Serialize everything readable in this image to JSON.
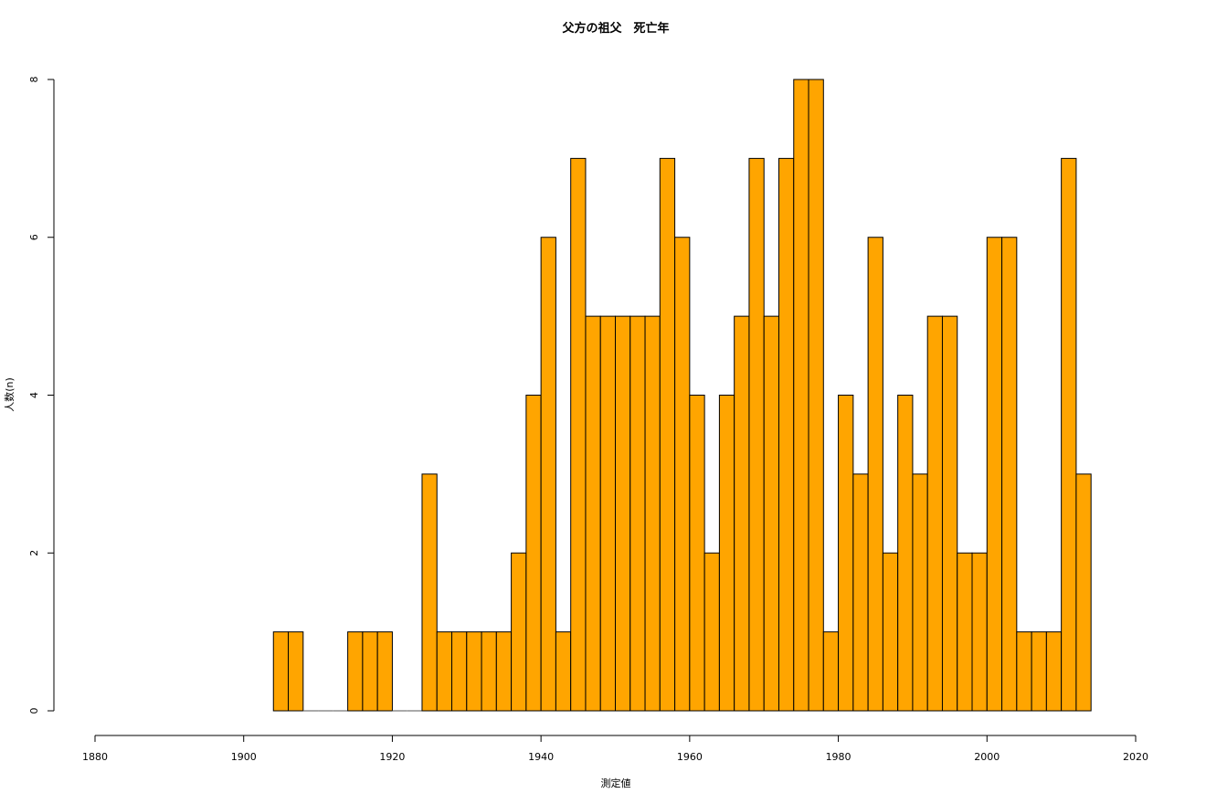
{
  "chart_data": {
    "type": "bar",
    "title": "父方の祖父　死亡年",
    "xlabel": "測定値",
    "ylabel": "人数(n)",
    "x_ticks": [
      1880,
      1900,
      1920,
      1940,
      1960,
      1980,
      2000,
      2020
    ],
    "y_ticks": [
      0,
      2,
      4,
      6,
      8
    ],
    "xlim": [
      1880,
      2020
    ],
    "ylim": [
      0,
      8
    ],
    "bin_width": 2,
    "bin_start": 1904,
    "values": [
      1,
      1,
      0,
      0,
      0,
      1,
      1,
      1,
      0,
      0,
      3,
      1,
      1,
      1,
      1,
      1,
      2,
      4,
      6,
      1,
      7,
      5,
      5,
      5,
      5,
      5,
      7,
      6,
      4,
      2,
      4,
      5,
      7,
      5,
      7,
      8,
      8,
      1,
      4,
      3,
      6,
      2,
      4,
      3,
      5,
      5,
      2,
      2,
      6,
      6,
      1,
      1,
      1,
      7,
      3
    ],
    "bar_color": "#FFA500",
    "grid": false
  }
}
